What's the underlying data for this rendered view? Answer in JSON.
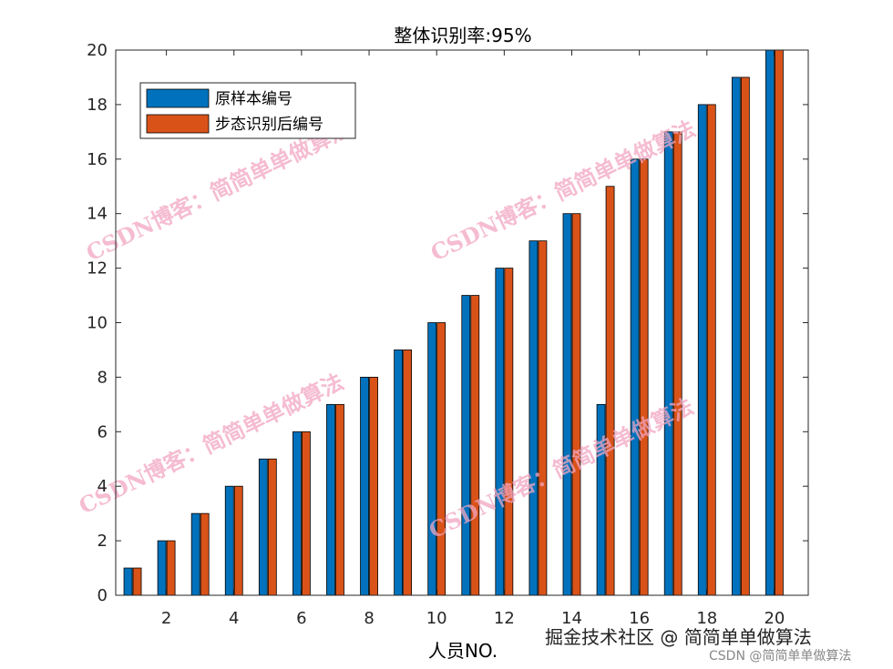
{
  "chart_data": {
    "type": "bar",
    "title": "整体识别率:95%",
    "xlabel": "人员NO.",
    "ylabel": "",
    "categories": [
      1,
      2,
      3,
      4,
      5,
      6,
      7,
      8,
      9,
      10,
      11,
      12,
      13,
      14,
      15,
      16,
      17,
      18,
      19,
      20
    ],
    "x_tick_labels": [
      "2",
      "4",
      "6",
      "8",
      "10",
      "12",
      "14",
      "16",
      "18",
      "20"
    ],
    "y_tick_labels": [
      "0",
      "2",
      "4",
      "6",
      "8",
      "10",
      "12",
      "14",
      "16",
      "18",
      "20"
    ],
    "ylim": [
      0,
      20
    ],
    "grid": false,
    "legend_position": "top-left",
    "series": [
      {
        "name": "原样本编号",
        "color": "#0072BD",
        "values": [
          1,
          2,
          3,
          4,
          5,
          6,
          7,
          8,
          9,
          10,
          11,
          12,
          13,
          14,
          7,
          16,
          17,
          18,
          19,
          20
        ]
      },
      {
        "name": "步态识别后编号",
        "color": "#D95319",
        "values": [
          1,
          2,
          3,
          4,
          5,
          6,
          7,
          8,
          9,
          10,
          11,
          12,
          13,
          14,
          15,
          16,
          17,
          18,
          19,
          20
        ]
      }
    ]
  },
  "watermark": {
    "text": "CSDN博客：简简单单做算法",
    "color": "#f2a6c2"
  },
  "footer": {
    "line1": "掘金技术社区 @ 简简单单做算法",
    "line2": "CSDN @简简单单做算法"
  }
}
